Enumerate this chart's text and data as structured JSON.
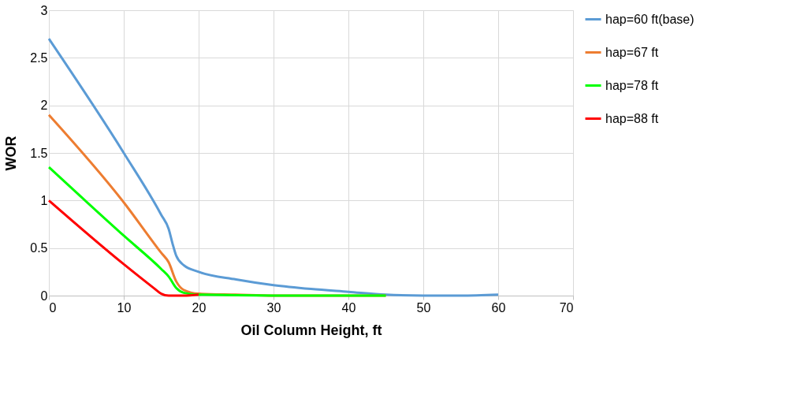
{
  "chart_data": {
    "type": "line",
    "xlabel": "Oil Column Height, ft",
    "ylabel": "WOR",
    "xlim": [
      0,
      70
    ],
    "xticks": [
      0,
      10,
      20,
      30,
      40,
      50,
      60,
      70
    ],
    "ylim": [
      0,
      3
    ],
    "yticks": [
      0,
      0.5,
      1,
      1.5,
      2,
      2.5,
      3
    ],
    "grid": true,
    "legend": "right",
    "marker": "none",
    "line_style": "solid",
    "series": [
      {
        "name": "hap=60 ft(base)",
        "color": "#5b9bd5",
        "x": [
          0,
          10,
          15,
          16,
          16.5,
          17,
          18,
          20,
          25,
          30,
          35,
          40,
          45,
          50,
          55,
          60
        ],
        "values": [
          2.7,
          1.5,
          0.85,
          0.7,
          0.55,
          0.42,
          0.32,
          0.25,
          0.17,
          0.11,
          0.07,
          0.04,
          0.01,
          0,
          0,
          0.01
        ]
      },
      {
        "name": "hap=67 ft",
        "color": "#ed7d31",
        "x": [
          0,
          10,
          15,
          16,
          17,
          18,
          20,
          25,
          30,
          45
        ],
        "values": [
          1.9,
          0.98,
          0.45,
          0.35,
          0.15,
          0.06,
          0.02,
          0.01,
          0,
          0
        ]
      },
      {
        "name": "hap=78 ft",
        "color": "#00ff00",
        "x": [
          0,
          10,
          15,
          16,
          17,
          18,
          20,
          30,
          45
        ],
        "values": [
          1.35,
          0.63,
          0.28,
          0.2,
          0.08,
          0.03,
          0.01,
          0,
          0
        ]
      },
      {
        "name": "hap=88 ft",
        "color": "#ff0000",
        "x": [
          0,
          10,
          14,
          15,
          16,
          18,
          20
        ],
        "values": [
          1.0,
          0.33,
          0.08,
          0.02,
          0,
          0,
          0.01
        ]
      }
    ]
  }
}
